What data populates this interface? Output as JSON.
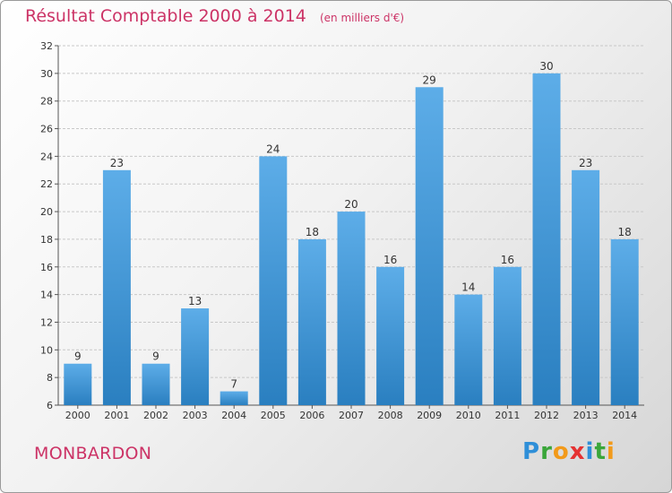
{
  "header": {
    "title": "Résultat Comptable 2000 à 2014",
    "unit": "(en milliers d'€)"
  },
  "footer": {
    "town": "MONBARDON",
    "logo_letters": [
      {
        "ch": "P",
        "color": "#2f8fd8"
      },
      {
        "ch": "r",
        "color": "#3aa63a"
      },
      {
        "ch": "o",
        "color": "#f29a1a"
      },
      {
        "ch": "x",
        "color": "#e53232"
      },
      {
        "ch": "i",
        "color": "#2f8fd8"
      },
      {
        "ch": "t",
        "color": "#3aa63a"
      },
      {
        "ch": "i",
        "color": "#f29a1a"
      }
    ]
  },
  "colors": {
    "title": "#cc3366",
    "bar_light": "#5dade8",
    "bar_dark": "#2a7fc0",
    "grid": "#c8c8c8"
  },
  "chart_data": {
    "type": "bar",
    "title": "Résultat Comptable 2000 à 2014",
    "subtitle": "(en milliers d'€)",
    "categories": [
      "2000",
      "2001",
      "2002",
      "2003",
      "2004",
      "2005",
      "2006",
      "2007",
      "2008",
      "2009",
      "2010",
      "2011",
      "2012",
      "2013",
      "2014"
    ],
    "values": [
      9,
      23,
      9,
      13,
      7,
      24,
      18,
      20,
      16,
      29,
      14,
      16,
      30,
      23,
      18
    ],
    "ylim": [
      6,
      32
    ],
    "yticks": [
      6,
      8,
      10,
      12,
      14,
      16,
      18,
      20,
      22,
      24,
      26,
      28,
      30,
      32
    ],
    "grid": true,
    "legend": "none"
  }
}
